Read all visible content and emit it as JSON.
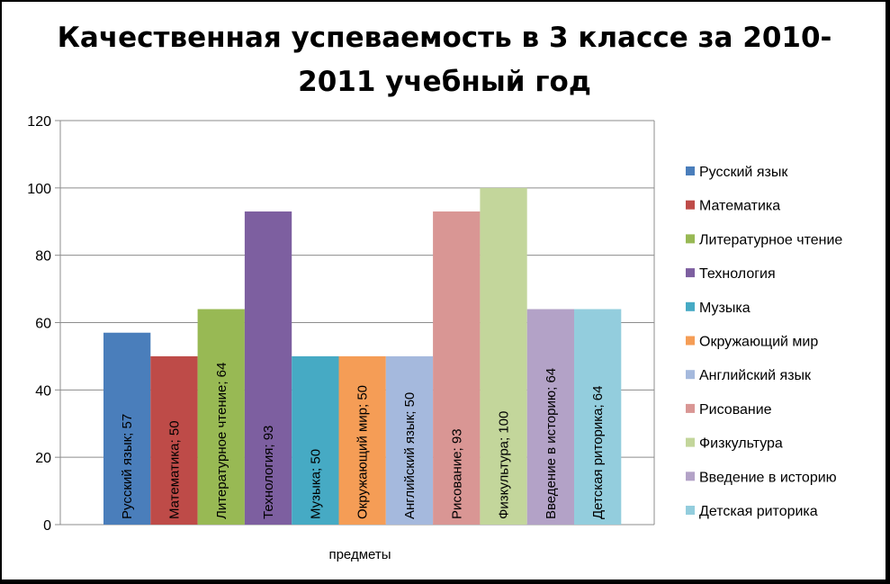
{
  "chart_data": {
    "type": "bar",
    "title_lines": [
      "Качественная успеваемость в 3 классе за 2010-",
      "2011 учебный год"
    ],
    "xlabel": "предметы",
    "ylabel": "",
    "ylim": [
      0,
      120
    ],
    "yticks": [
      0,
      20,
      40,
      60,
      80,
      100,
      120
    ],
    "grid": true,
    "legend_position": "right",
    "series": [
      {
        "name": "Русский язык",
        "value": 57,
        "label": "Русский язык; 57",
        "color": "#4a7ebb"
      },
      {
        "name": "Математика",
        "value": 50,
        "label": "Математика; 50",
        "color": "#be4b48"
      },
      {
        "name": "Литературное чтение",
        "value": 64,
        "label": "Литературное чтение; 64",
        "color": "#98b954"
      },
      {
        "name": "Технология",
        "value": 93,
        "label": "Технология; 93",
        "color": "#7d5fa0"
      },
      {
        "name": "Музыка",
        "value": 50,
        "label": "Музыка; 50",
        "color": "#46aac4"
      },
      {
        "name": "Окружающий мир",
        "value": 50,
        "label": "Окружающий мир; 50",
        "color": "#f59d56"
      },
      {
        "name": "Английский язык",
        "value": 50,
        "label": "Английский язык; 50",
        "color": "#a5b9dd"
      },
      {
        "name": "Рисование",
        "value": 93,
        "label": "Рисование; 93",
        "color": "#d99694"
      },
      {
        "name": "Физкультура",
        "value": 100,
        "label": "Физкультура; 100",
        "color": "#c3d69b"
      },
      {
        "name": "Введение в историю",
        "value": 64,
        "label": "Введение в историю; 64",
        "color": "#b3a2c7"
      },
      {
        "name": "Детская риторика",
        "value": 64,
        "label": "Детская риторика; 64",
        "color": "#93cddd"
      }
    ]
  }
}
